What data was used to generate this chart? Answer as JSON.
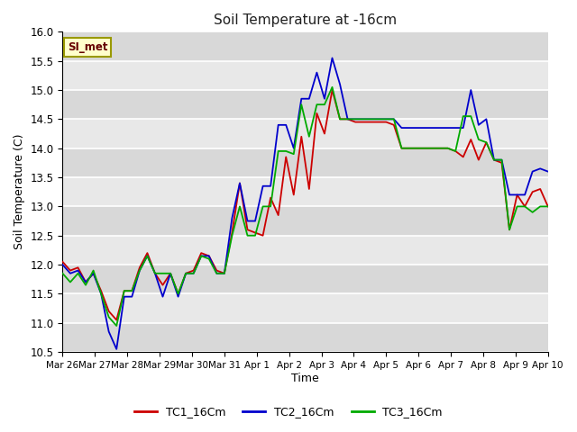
{
  "title": "Soil Temperature at -16cm",
  "xlabel": "Time",
  "ylabel": "Soil Temperature (C)",
  "ylim": [
    10.5,
    16.0
  ],
  "yticks": [
    10.5,
    11.0,
    11.5,
    12.0,
    12.5,
    13.0,
    13.5,
    14.0,
    14.5,
    15.0,
    15.5,
    16.0
  ],
  "bg_color": "#e8e8e8",
  "fig_color": "#ffffff",
  "legend_label": "SI_met",
  "series_labels": [
    "TC1_16Cm",
    "TC2_16Cm",
    "TC3_16Cm"
  ],
  "series_colors": [
    "#cc0000",
    "#0000cc",
    "#00aa00"
  ],
  "x_tick_labels": [
    "Mar 26",
    "Mar 27",
    "Mar 28",
    "Mar 29",
    "Mar 30",
    "Mar 31",
    "Apr 1",
    "Apr 2",
    "Apr 3",
    "Apr 4",
    "Apr 5",
    "Apr 6",
    "Apr 7",
    "Apr 8",
    "Apr 9",
    "Apr 10"
  ],
  "TC1_16Cm": [
    12.05,
    11.9,
    11.95,
    11.7,
    11.85,
    11.55,
    11.2,
    11.05,
    11.55,
    11.55,
    11.95,
    12.2,
    11.85,
    11.65,
    11.85,
    11.5,
    11.85,
    11.9,
    12.2,
    12.15,
    11.9,
    11.85,
    12.55,
    13.4,
    12.6,
    12.55,
    12.5,
    13.15,
    12.85,
    13.85,
    13.2,
    14.2,
    13.3,
    14.6,
    14.25,
    15.0,
    14.5,
    14.5,
    14.45,
    14.45,
    14.45,
    14.45,
    14.45,
    14.4,
    14.0,
    14.0,
    14.0,
    14.0,
    14.0,
    14.0,
    14.0,
    13.95,
    13.85,
    14.15,
    13.8,
    14.1,
    13.8,
    13.75,
    12.6,
    13.2,
    13.0,
    13.25,
    13.3,
    13.0
  ],
  "TC2_16Cm": [
    12.0,
    11.85,
    11.9,
    11.7,
    11.85,
    11.5,
    10.85,
    10.55,
    11.45,
    11.45,
    11.9,
    12.15,
    11.85,
    11.45,
    11.85,
    11.45,
    11.85,
    11.85,
    12.15,
    12.15,
    11.85,
    11.85,
    12.8,
    13.4,
    12.75,
    12.75,
    13.35,
    13.35,
    14.4,
    14.4,
    14.0,
    14.85,
    14.85,
    15.3,
    14.85,
    15.55,
    15.1,
    14.5,
    14.5,
    14.5,
    14.5,
    14.5,
    14.5,
    14.5,
    14.35,
    14.35,
    14.35,
    14.35,
    14.35,
    14.35,
    14.35,
    14.35,
    14.35,
    15.0,
    14.4,
    14.5,
    13.8,
    13.8,
    13.2,
    13.2,
    13.2,
    13.6,
    13.65,
    13.6
  ],
  "TC3_16Cm": [
    11.85,
    11.7,
    11.85,
    11.65,
    11.9,
    11.5,
    11.1,
    10.95,
    11.55,
    11.55,
    11.9,
    12.15,
    11.85,
    11.85,
    11.85,
    11.5,
    11.85,
    11.85,
    12.15,
    12.1,
    11.85,
    11.85,
    12.5,
    13.0,
    12.5,
    12.5,
    13.0,
    13.0,
    13.95,
    13.95,
    13.9,
    14.75,
    14.2,
    14.75,
    14.75,
    15.05,
    14.5,
    14.5,
    14.5,
    14.5,
    14.5,
    14.5,
    14.5,
    14.5,
    14.0,
    14.0,
    14.0,
    14.0,
    14.0,
    14.0,
    14.0,
    13.95,
    14.55,
    14.55,
    14.15,
    14.1,
    13.8,
    13.8,
    12.6,
    13.0,
    13.0,
    12.9,
    13.0,
    13.0
  ]
}
